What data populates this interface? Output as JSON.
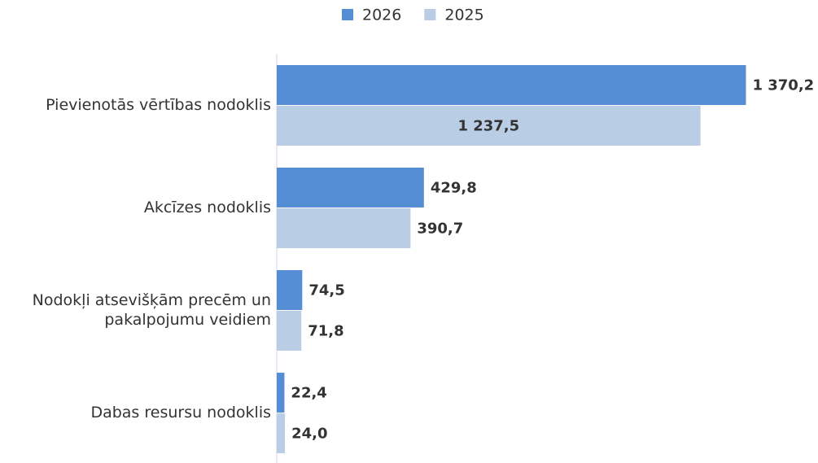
{
  "chart_data": {
    "type": "hbar",
    "categories": [
      "Pievienotās vērtības nodoklis",
      "Akcīzes nodoklis",
      "Nodokļi atsevišķām precēm un pakalpojumu veidiem",
      "Dabas resursu nodoklis"
    ],
    "series": [
      {
        "name": "2026",
        "color": "#558ed5",
        "values": [
          1370.2,
          429.8,
          74.5,
          22.4
        ],
        "value_labels": [
          "1 370,2",
          "429,8",
          "74,5",
          "22,4"
        ]
      },
      {
        "name": "2025",
        "color": "#b9cde5",
        "values": [
          1237.5,
          390.7,
          71.8,
          24.0
        ],
        "value_labels": [
          "1 237,5",
          "390,7",
          "71,8",
          "24,0"
        ]
      }
    ],
    "xlim": [
      0,
      1400
    ],
    "legend": "top"
  }
}
